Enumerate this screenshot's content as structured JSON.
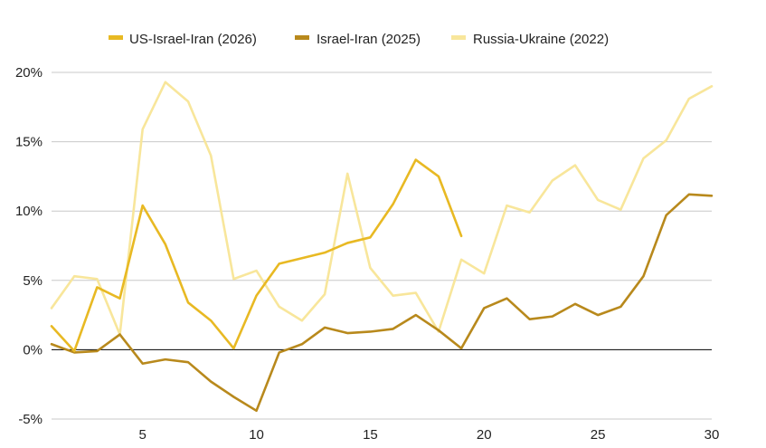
{
  "chart_data": {
    "type": "line",
    "title": "",
    "xlabel": "",
    "ylabel": "",
    "xlim": [
      1,
      30
    ],
    "ylim": [
      -5,
      20
    ],
    "y_ticks": [
      -5,
      0,
      5,
      10,
      15,
      20
    ],
    "y_tick_labels": [
      "-5%",
      "0%",
      "5%",
      "10%",
      "15%",
      "20%"
    ],
    "x_ticks": [
      5,
      10,
      15,
      20,
      25,
      30
    ],
    "x_tick_labels": [
      "5",
      "10",
      "15",
      "20",
      "25",
      "30"
    ],
    "grid": true,
    "legend_position": "top",
    "series": [
      {
        "name": "US-Israel-Iran (2026)",
        "color": "#E8B923",
        "x": [
          1,
          2,
          3,
          4,
          5,
          6,
          7,
          8,
          9,
          10,
          11,
          12,
          13,
          14,
          15,
          16,
          17,
          18,
          19
        ],
        "values": [
          1.7,
          -0.1,
          4.5,
          3.7,
          10.4,
          7.6,
          3.4,
          2.1,
          0.1,
          3.9,
          6.2,
          6.6,
          7.0,
          7.7,
          8.1,
          10.5,
          13.7,
          12.5,
          8.2
        ]
      },
      {
        "name": "Israel-Iran (2025)",
        "color": "#B8891C",
        "x": [
          1,
          2,
          3,
          4,
          5,
          6,
          7,
          8,
          9,
          10,
          11,
          12,
          13,
          14,
          15,
          16,
          17,
          18,
          19,
          20,
          21,
          22,
          23,
          24,
          25,
          26,
          27,
          28,
          29,
          30
        ],
        "values": [
          0.4,
          -0.2,
          -0.1,
          1.1,
          -1.0,
          -0.7,
          -0.9,
          -2.3,
          -3.4,
          -4.4,
          -0.2,
          0.4,
          1.6,
          1.2,
          1.3,
          1.5,
          2.5,
          1.4,
          0.1,
          3.0,
          3.7,
          2.2,
          2.4,
          3.3,
          2.5,
          3.1,
          5.3,
          9.7,
          11.2,
          11.1
        ]
      },
      {
        "name": "Russia-Ukraine (2022)",
        "color": "#F8E69B",
        "x": [
          1,
          2,
          3,
          4,
          5,
          6,
          7,
          8,
          9,
          10,
          11,
          12,
          13,
          14,
          15,
          16,
          17,
          18,
          19,
          20,
          21,
          22,
          23,
          24,
          25,
          26,
          27,
          28,
          29,
          30
        ],
        "values": [
          3.0,
          5.3,
          5.1,
          1.1,
          15.9,
          19.3,
          17.9,
          14.0,
          5.1,
          5.7,
          3.1,
          2.1,
          4.0,
          12.7,
          5.9,
          3.9,
          4.1,
          1.3,
          6.5,
          5.5,
          10.4,
          9.9,
          12.2,
          13.3,
          10.8,
          10.1,
          13.8,
          15.1,
          18.1,
          19.0
        ]
      }
    ]
  }
}
